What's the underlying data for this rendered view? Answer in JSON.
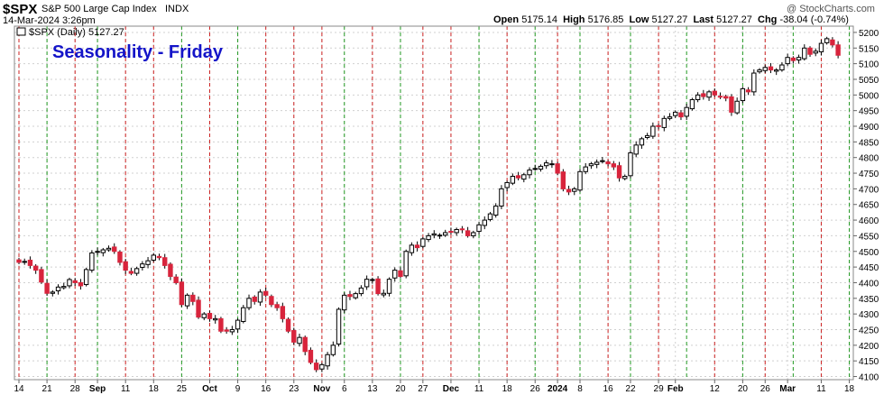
{
  "header": {
    "symbol": "$SPX",
    "name": "S&P 500 Large Cap Index",
    "exchange": "INDX",
    "datetime": "14-Mar-2024 3:26pm",
    "watermark": "@ StockCharts.com",
    "open_label": "Open",
    "open_value": "5175.14",
    "high_label": "High",
    "high_value": "5176.85",
    "low_label": "Low",
    "low_value": "5127.27",
    "last_label": "Last",
    "last_value": "5127.27",
    "chg_label": "Chg",
    "chg_value": "-38.04 (-0.74%)"
  },
  "legend": {
    "text": "$SPX (Daily) 5127.27"
  },
  "chart_data": {
    "type": "candlestick",
    "title": "Seasonality - Friday",
    "ylim": [
      4090,
      5220
    ],
    "yticks": [
      4100,
      4150,
      4200,
      4250,
      4300,
      4350,
      4400,
      4450,
      4500,
      4550,
      4600,
      4650,
      4700,
      4750,
      4800,
      4850,
      4900,
      4950,
      5000,
      5050,
      5100,
      5150,
      5200
    ],
    "xticks": [
      {
        "label": "14",
        "i": 0
      },
      {
        "label": "21",
        "i": 5
      },
      {
        "label": "28",
        "i": 10
      },
      {
        "label": "Sep",
        "i": 14,
        "bold": true
      },
      {
        "label": "11",
        "i": 19
      },
      {
        "label": "18",
        "i": 24
      },
      {
        "label": "25",
        "i": 29
      },
      {
        "label": "Oct",
        "i": 34,
        "bold": true
      },
      {
        "label": "9",
        "i": 39
      },
      {
        "label": "16",
        "i": 44
      },
      {
        "label": "23",
        "i": 49
      },
      {
        "label": "Nov",
        "i": 54,
        "bold": true
      },
      {
        "label": "6",
        "i": 58
      },
      {
        "label": "13",
        "i": 63
      },
      {
        "label": "20",
        "i": 68
      },
      {
        "label": "27",
        "i": 72
      },
      {
        "label": "Dec",
        "i": 77,
        "bold": true
      },
      {
        "label": "11",
        "i": 82
      },
      {
        "label": "18",
        "i": 87
      },
      {
        "label": "26",
        "i": 92
      },
      {
        "label": "2024",
        "i": 96,
        "bold": true
      },
      {
        "label": "8",
        "i": 100
      },
      {
        "label": "16",
        "i": 105
      },
      {
        "label": "22",
        "i": 109
      },
      {
        "label": "29",
        "i": 114
      },
      {
        "label": "Feb",
        "i": 117,
        "bold": true
      },
      {
        "label": "12",
        "i": 124
      },
      {
        "label": "20",
        "i": 129
      },
      {
        "label": "26",
        "i": 133
      },
      {
        "label": "Mar",
        "i": 137,
        "bold": true
      },
      {
        "label": "11",
        "i": 143
      },
      {
        "label": "18",
        "i": 148
      }
    ],
    "friday_lines_red": [
      0,
      10,
      19,
      24,
      34,
      44,
      49,
      54,
      63,
      72,
      77,
      87,
      96,
      105,
      114,
      124,
      133,
      143
    ],
    "friday_lines_green": [
      5,
      14,
      29,
      39,
      58,
      68,
      82,
      92,
      100,
      109,
      119,
      129,
      138,
      148
    ],
    "colors": {
      "up": "#ffffff",
      "down": "#d8243c",
      "outline": "#000000",
      "red_line": "#cc2222",
      "green_line": "#229922",
      "title": "#1414c8"
    },
    "closes": [
      4465,
      4468,
      4455,
      4440,
      4402,
      4366,
      4370,
      4386,
      4388,
      4410,
      4400,
      4390,
      4442,
      4495,
      4500,
      4505,
      4510,
      4500,
      4465,
      4440,
      4430,
      4445,
      4460,
      4470,
      4488,
      4480,
      4455,
      4420,
      4400,
      4330,
      4360,
      4340,
      4290,
      4300,
      4285,
      4285,
      4245,
      4245,
      4250,
      4280,
      4320,
      4350,
      4340,
      4370,
      4360,
      4330,
      4320,
      4285,
      4245,
      4210,
      4225,
      4180,
      4145,
      4122,
      4138,
      4170,
      4200,
      4315,
      4360,
      4356,
      4365,
      4383,
      4411,
      4410,
      4365,
      4366,
      4411,
      4440,
      4420,
      4500,
      4520,
      4512,
      4540,
      4550,
      4556,
      4552,
      4560,
      4562,
      4570,
      4570,
      4550,
      4560,
      4585,
      4600,
      4620,
      4645,
      4700,
      4720,
      4740,
      4735,
      4745,
      4760,
      4765,
      4772,
      4783,
      4780,
      4750,
      4700,
      4690,
      4700,
      4755,
      4770,
      4780,
      4785,
      4790,
      4780,
      4770,
      4735,
      4740,
      4815,
      4840,
      4860,
      4870,
      4900,
      4900,
      4925,
      4930,
      4945,
      4930,
      4960,
      4985,
      5000,
      4995,
      5010,
      5000,
      4995,
      4990,
      4945,
      4980,
      5020,
      5010,
      5070,
      5080,
      5088,
      5080,
      5080,
      5096,
      5120,
      5110,
      5120,
      5150,
      5130,
      5140,
      5165,
      5180,
      5160,
      5127
    ]
  }
}
